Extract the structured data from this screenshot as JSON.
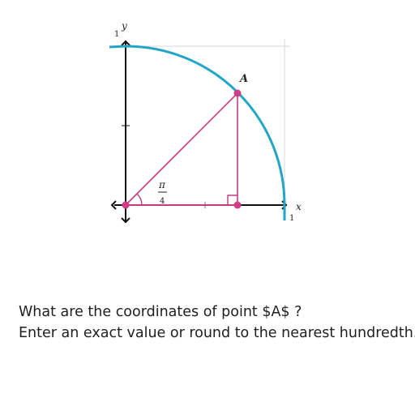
{
  "figure": {
    "y_axis_label": "y",
    "x_axis_label": "x",
    "y_tick_label": "1",
    "x_tick_label": "1",
    "point_label": "A",
    "angle_numerator": "π",
    "angle_denominator": "4",
    "angle": "π/4",
    "arc_color": "#22a6c6",
    "triangle_color": "#c63a7e",
    "point_color": "#d23b86",
    "axis_color": "#111111"
  },
  "question": {
    "line1": "What are the coordinates of point $A$ ?",
    "line2": "Enter an exact value or round to the nearest hundredth."
  }
}
